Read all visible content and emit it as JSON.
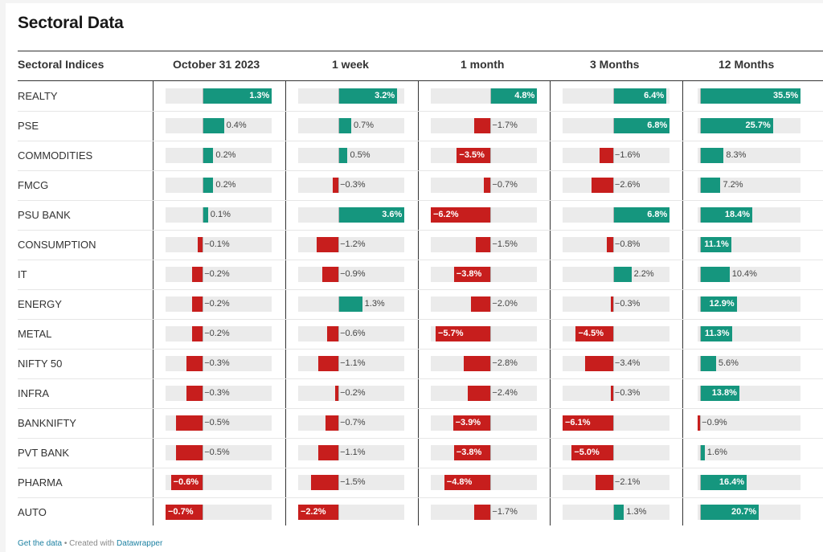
{
  "title": "Sectoral Data",
  "colors": {
    "positive": "#15967e",
    "negative": "#c71e1d",
    "track": "#ebebeb"
  },
  "columns": [
    "Sectoral Indices",
    "October 31 2023",
    "1 week",
    "1 month",
    "3 Months",
    "12 Months"
  ],
  "footer": {
    "get_data": "Get the data",
    "sep": " • Created with ",
    "tool": "Datawrapper"
  },
  "chart_data": {
    "type": "table",
    "column_ranges": [
      [
        -0.7,
        1.3
      ],
      [
        -2.2,
        3.6
      ],
      [
        -6.2,
        4.8
      ],
      [
        -6.1,
        6.8
      ],
      [
        -0.9,
        35.5
      ]
    ],
    "rows": [
      {
        "name": "REALTY",
        "values": [
          1.3,
          3.2,
          4.8,
          6.4,
          35.5
        ],
        "labels": [
          "1.3%",
          "3.2%",
          "4.8%",
          "6.4%",
          "35.5%"
        ]
      },
      {
        "name": "PSE",
        "values": [
          0.4,
          0.7,
          -1.7,
          6.8,
          25.7
        ],
        "labels": [
          "0.4%",
          "0.7%",
          "−1.7%",
          "6.8%",
          "25.7%"
        ]
      },
      {
        "name": "COMMODITIES",
        "values": [
          0.2,
          0.5,
          -3.5,
          -1.6,
          8.3
        ],
        "labels": [
          "0.2%",
          "0.5%",
          "−3.5%",
          "−1.6%",
          "8.3%"
        ]
      },
      {
        "name": "FMCG",
        "values": [
          0.2,
          -0.3,
          -0.7,
          -2.6,
          7.2
        ],
        "labels": [
          "0.2%",
          "−0.3%",
          "−0.7%",
          "−2.6%",
          "7.2%"
        ]
      },
      {
        "name": "PSU BANK",
        "values": [
          0.1,
          3.6,
          -6.2,
          6.8,
          18.4
        ],
        "labels": [
          "0.1%",
          "3.6%",
          "−6.2%",
          "6.8%",
          "18.4%"
        ]
      },
      {
        "name": "CONSUMPTION",
        "values": [
          -0.1,
          -1.2,
          -1.5,
          -0.8,
          11.1
        ],
        "labels": [
          "−0.1%",
          "−1.2%",
          "−1.5%",
          "−0.8%",
          "11.1%"
        ]
      },
      {
        "name": "IT",
        "values": [
          -0.2,
          -0.9,
          -3.8,
          2.2,
          10.4
        ],
        "labels": [
          "−0.2%",
          "−0.9%",
          "−3.8%",
          "2.2%",
          "10.4%"
        ]
      },
      {
        "name": "ENERGY",
        "values": [
          -0.2,
          1.3,
          -2.0,
          -0.3,
          12.9
        ],
        "labels": [
          "−0.2%",
          "1.3%",
          "−2.0%",
          "−0.3%",
          "12.9%"
        ]
      },
      {
        "name": "METAL",
        "values": [
          -0.2,
          -0.6,
          -5.7,
          -4.5,
          11.3
        ],
        "labels": [
          "−0.2%",
          "−0.6%",
          "−5.7%",
          "−4.5%",
          "11.3%"
        ]
      },
      {
        "name": "NIFTY 50",
        "values": [
          -0.3,
          -1.1,
          -2.8,
          -3.4,
          5.6
        ],
        "labels": [
          "−0.3%",
          "−1.1%",
          "−2.8%",
          "−3.4%",
          "5.6%"
        ]
      },
      {
        "name": "INFRA",
        "values": [
          -0.3,
          -0.2,
          -2.4,
          -0.3,
          13.8
        ],
        "labels": [
          "−0.3%",
          "−0.2%",
          "−2.4%",
          "−0.3%",
          "13.8%"
        ]
      },
      {
        "name": "BANKNIFTY",
        "values": [
          -0.5,
          -0.7,
          -3.9,
          -6.1,
          -0.9
        ],
        "labels": [
          "−0.5%",
          "−0.7%",
          "−3.9%",
          "−6.1%",
          "−0.9%"
        ]
      },
      {
        "name": "PVT BANK",
        "values": [
          -0.5,
          -1.1,
          -3.8,
          -5.0,
          1.6
        ],
        "labels": [
          "−0.5%",
          "−1.1%",
          "−3.8%",
          "−5.0%",
          "1.6%"
        ]
      },
      {
        "name": "PHARMA",
        "values": [
          -0.6,
          -1.5,
          -4.8,
          -2.1,
          16.4
        ],
        "labels": [
          "−0.6%",
          "−1.5%",
          "−4.8%",
          "−2.1%",
          "16.4%"
        ]
      },
      {
        "name": "AUTO",
        "values": [
          -0.7,
          -2.2,
          -1.7,
          1.3,
          20.7
        ],
        "labels": [
          "−0.7%",
          "−2.2%",
          "−1.7%",
          "1.3%",
          "20.7%"
        ]
      }
    ]
  }
}
